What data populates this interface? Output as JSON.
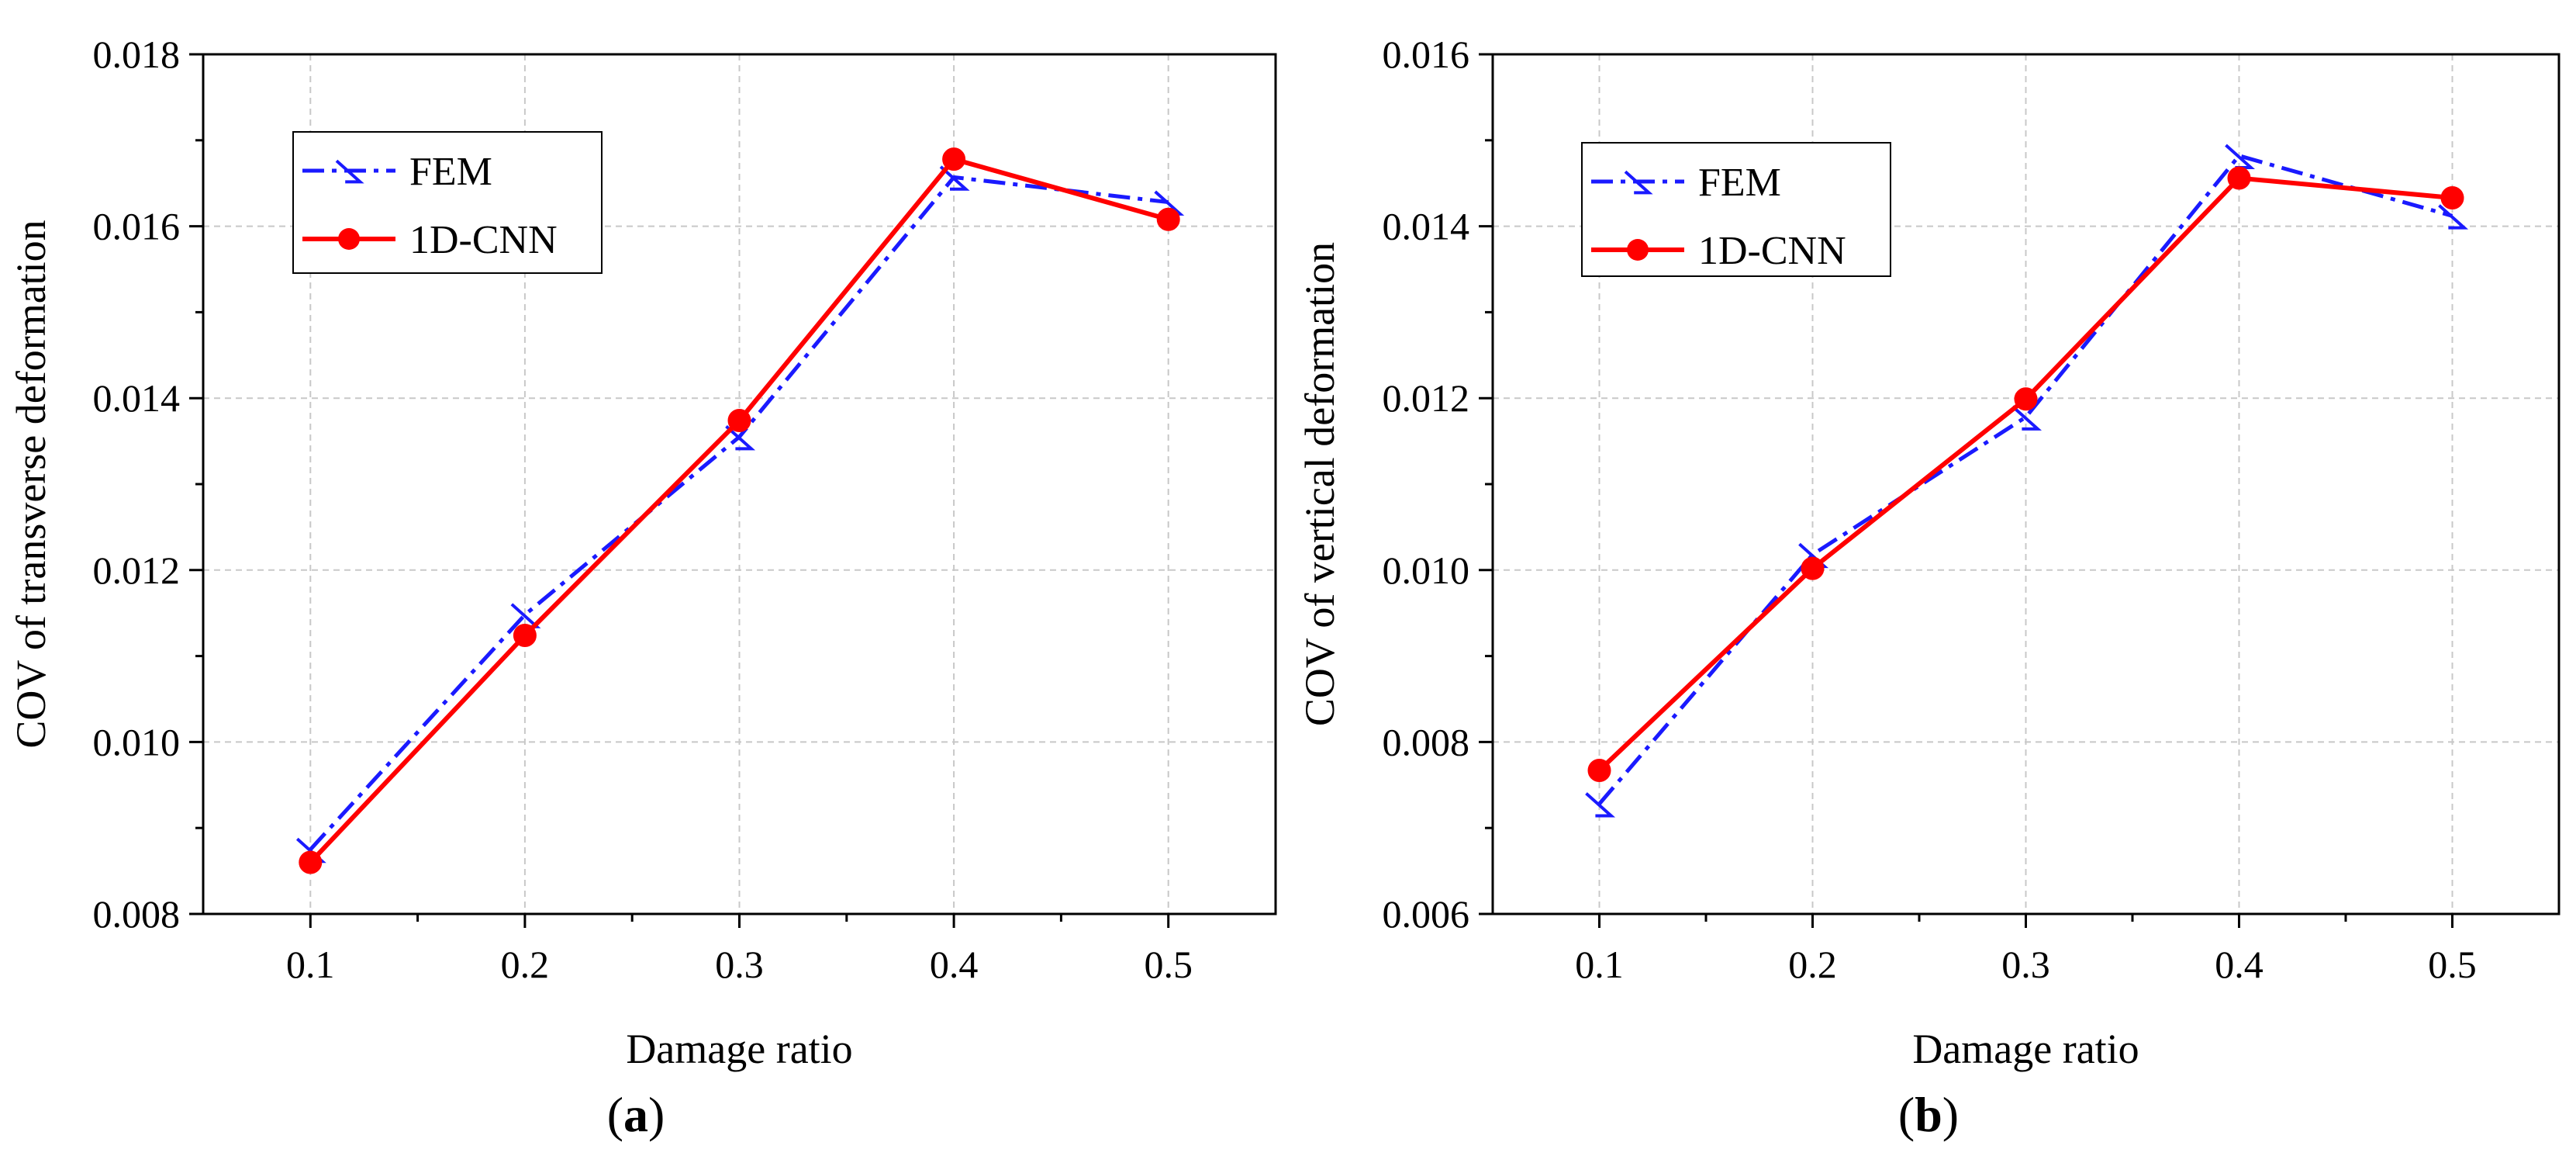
{
  "chart_data": [
    {
      "type": "line",
      "panel_label": "a",
      "title": "",
      "xlabel": "Damage ratio",
      "ylabel": "COV of transverse deformation",
      "x": [
        0.1,
        0.2,
        0.3,
        0.4,
        0.5
      ],
      "x_tick_labels": [
        "0.1",
        "0.2",
        "0.3",
        "0.4",
        "0.5"
      ],
      "y_tick_labels": [
        "0.008",
        "0.010",
        "0.012",
        "0.014",
        "0.016",
        "0.018"
      ],
      "y_ticks": [
        0.008,
        0.01,
        0.012,
        0.014,
        0.016,
        0.018
      ],
      "xlim": [
        0.05,
        0.55
      ],
      "ylim": [
        0.008,
        0.018
      ],
      "grid": true,
      "legend_position": "top-left",
      "series": [
        {
          "name": "FEM",
          "values": [
            0.00875,
            0.01148,
            0.01355,
            0.01657,
            0.01628
          ],
          "color": "#1a1aff",
          "style": "dash-dot",
          "marker": "triangle-open"
        },
        {
          "name": "1D-CNN",
          "values": [
            0.0086,
            0.01124,
            0.01374,
            0.01678,
            0.01608
          ],
          "color": "#ff0000",
          "style": "solid",
          "marker": "circle-filled"
        }
      ]
    },
    {
      "type": "line",
      "panel_label": "b",
      "title": "",
      "xlabel": "Damage ratio",
      "ylabel": "COV of vertical deformation",
      "x": [
        0.1,
        0.2,
        0.3,
        0.4,
        0.5
      ],
      "x_tick_labels": [
        "0.1",
        "0.2",
        "0.3",
        "0.4",
        "0.5"
      ],
      "y_tick_labels": [
        "0.006",
        "0.008",
        "0.010",
        "0.012",
        "0.014",
        "0.016"
      ],
      "y_ticks": [
        0.006,
        0.008,
        0.01,
        0.012,
        0.014,
        0.016
      ],
      "xlim": [
        0.05,
        0.55
      ],
      "ylim": [
        0.006,
        0.016
      ],
      "grid": true,
      "legend_position": "top-left",
      "series": [
        {
          "name": "FEM",
          "values": [
            0.00728,
            0.01018,
            0.01178,
            0.01482,
            0.01412
          ],
          "color": "#1a1aff",
          "style": "dash-dot",
          "marker": "triangle-open"
        },
        {
          "name": "1D-CNN",
          "values": [
            0.00767,
            0.01002,
            0.01199,
            0.01456,
            0.01433
          ],
          "color": "#ff0000",
          "style": "solid",
          "marker": "circle-filled"
        }
      ]
    }
  ]
}
